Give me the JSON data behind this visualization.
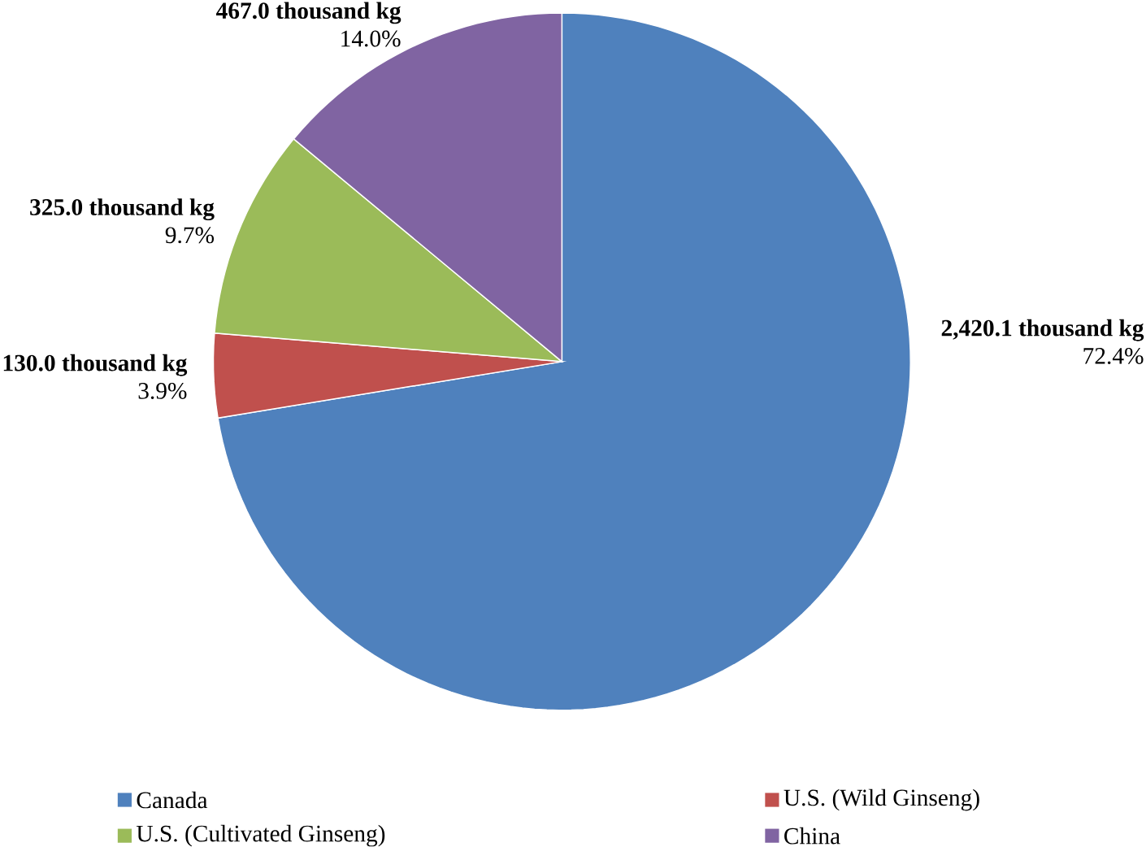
{
  "chart_data": {
    "type": "pie",
    "categories": [
      "Canada",
      "U.S. (Wild Ginseng)",
      "U.S. (Cultivated Ginseng)",
      "China"
    ],
    "values": [
      2420.1,
      130.0,
      325.0,
      467.0
    ],
    "colors": [
      "#4f81bd",
      "#c0504d",
      "#9bbb59",
      "#8064a2"
    ],
    "value_labels": [
      "2,420.1 thousand kg",
      "130.0 thousand kg",
      "325.0 thousand kg",
      "467.0 thousand kg"
    ],
    "annotations": [
      "72.4%",
      "3.9%",
      "9.7%",
      "14.0%"
    ],
    "legend": "bottom"
  }
}
